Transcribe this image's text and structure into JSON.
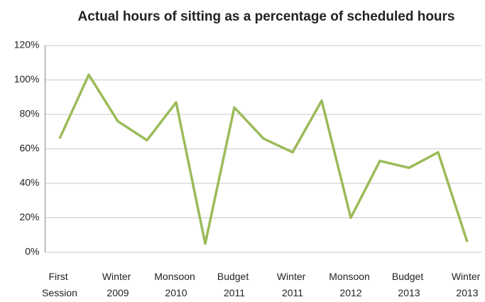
{
  "chart_data": {
    "type": "line",
    "title": "Actual hours of sitting as a percentage of scheduled hours",
    "categories": [
      "First Session",
      null,
      "Winter 2009",
      null,
      "Monsoon 2010",
      null,
      "Budget 2011",
      null,
      "Winter 2011",
      null,
      "Monsoon 2012",
      null,
      "Budget 2013",
      null,
      "Winter 2013"
    ],
    "series": [
      {
        "name": "Actual hours of sitting",
        "color": "#9bbb59",
        "values": [
          66,
          103,
          76,
          65,
          87,
          5,
          84,
          66,
          58,
          88,
          20,
          53,
          49,
          58,
          6
        ]
      }
    ],
    "ylim": [
      0,
      120
    ],
    "yticks": [
      {
        "value": 0,
        "label": "0%"
      },
      {
        "value": 20,
        "label": "20%"
      },
      {
        "value": 40,
        "label": "40%"
      },
      {
        "value": 60,
        "label": "60%"
      },
      {
        "value": 80,
        "label": "80%"
      },
      {
        "value": 100,
        "label": "100%"
      },
      {
        "value": 120,
        "label": "120%"
      }
    ],
    "grid": true
  }
}
